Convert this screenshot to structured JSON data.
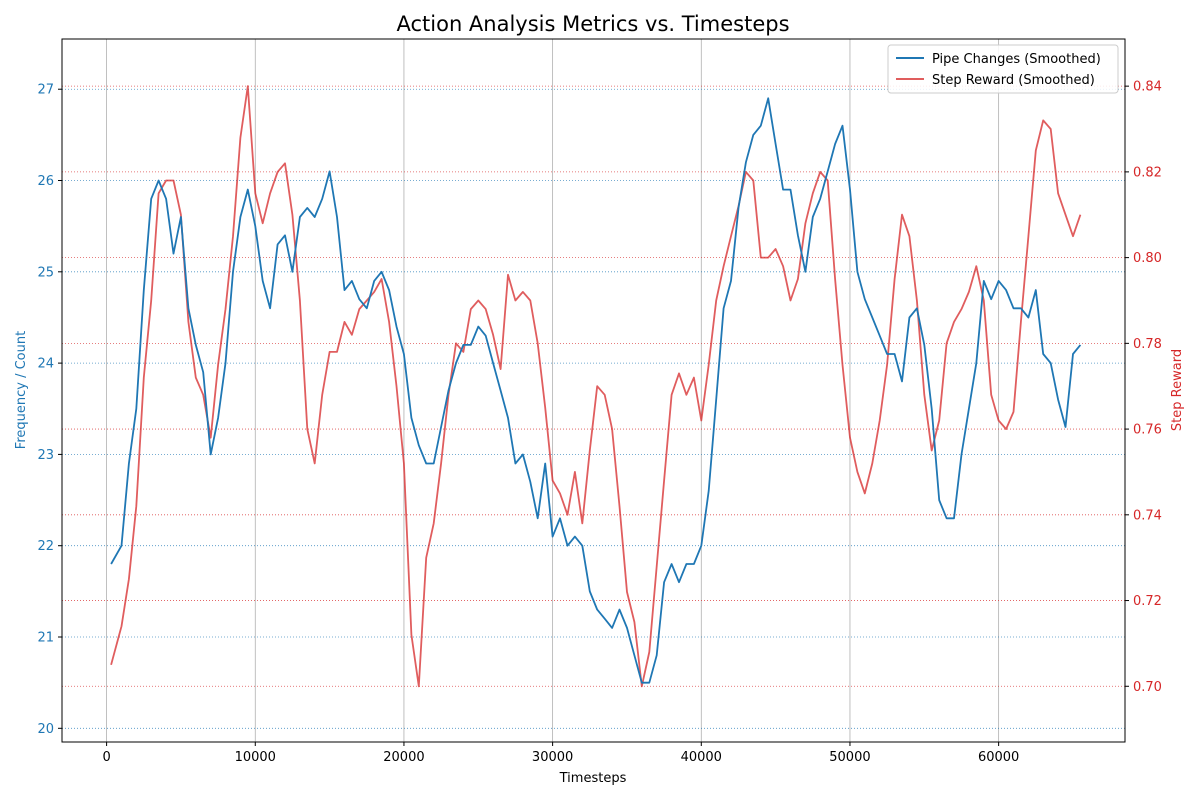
{
  "chart_data": {
    "type": "line",
    "title": "Action Analysis Metrics vs. Timesteps",
    "xlabel": "Timesteps",
    "ylabel_left": "Frequency / Count",
    "ylabel_right": "Step Reward",
    "xlim": [
      -3000,
      68500
    ],
    "ylim_left": [
      19.85,
      27.55
    ],
    "ylim_right": [
      0.687,
      0.851
    ],
    "x_ticks": [
      0,
      10000,
      20000,
      30000,
      40000,
      50000,
      60000
    ],
    "y_ticks_left": [
      20,
      21,
      22,
      23,
      24,
      25,
      26,
      27
    ],
    "y_ticks_right": [
      0.7,
      0.72,
      0.74,
      0.76,
      0.78,
      0.8,
      0.82,
      0.84
    ],
    "x_grid": true,
    "y_grid": "dotted, both axes",
    "legend_position": "top-right",
    "colors": {
      "left_axis": "#1f77b4",
      "right_axis": "#d62728"
    },
    "series": [
      {
        "name": "Pipe Changes (Smoothed)",
        "axis": "left",
        "color": "#1f77b4",
        "x": [
          300,
          1000,
          1500,
          2000,
          2500,
          3000,
          3500,
          4000,
          4500,
          5000,
          5500,
          6000,
          6500,
          7000,
          7500,
          8000,
          8500,
          9000,
          9500,
          10000,
          10500,
          11000,
          11500,
          12000,
          12500,
          13000,
          13500,
          14000,
          14500,
          15000,
          15500,
          16000,
          16500,
          17000,
          17500,
          18000,
          18500,
          19000,
          19500,
          20000,
          20500,
          21000,
          21500,
          22000,
          22500,
          23000,
          23500,
          24000,
          24500,
          25000,
          25500,
          26000,
          26500,
          27000,
          27500,
          28000,
          28500,
          29000,
          29500,
          30000,
          30500,
          31000,
          31500,
          32000,
          32500,
          33000,
          33500,
          34000,
          34500,
          35000,
          35500,
          36000,
          36500,
          37000,
          37500,
          38000,
          38500,
          39000,
          39500,
          40000,
          40500,
          41000,
          41500,
          42000,
          42500,
          43000,
          43500,
          44000,
          44500,
          45000,
          45500,
          46000,
          46500,
          47000,
          47500,
          48000,
          48500,
          49000,
          49500,
          50000,
          50500,
          51000,
          51500,
          52000,
          52500,
          53000,
          53500,
          54000,
          54500,
          55000,
          55500,
          56000,
          56500,
          57000,
          57500,
          58000,
          58500,
          59000,
          59500,
          60000,
          60500,
          61000,
          61500,
          62000,
          62500,
          63000,
          63500,
          64000,
          64500,
          65000,
          65500
        ],
        "y": [
          21.8,
          22.0,
          22.9,
          23.5,
          24.8,
          25.8,
          26.0,
          25.8,
          25.2,
          25.6,
          24.6,
          24.2,
          23.9,
          23.0,
          23.4,
          24.0,
          25.0,
          25.6,
          25.9,
          25.5,
          24.9,
          24.6,
          25.3,
          25.4,
          25.0,
          25.6,
          25.7,
          25.6,
          25.8,
          26.1,
          25.6,
          24.8,
          24.9,
          24.7,
          24.6,
          24.9,
          25.0,
          24.8,
          24.4,
          24.1,
          23.4,
          23.1,
          22.9,
          22.9,
          23.3,
          23.7,
          24.0,
          24.2,
          24.2,
          24.4,
          24.3,
          24.0,
          23.7,
          23.4,
          22.9,
          23.0,
          22.7,
          22.3,
          22.9,
          22.1,
          22.3,
          22.0,
          22.1,
          22.0,
          21.5,
          21.3,
          21.2,
          21.1,
          21.3,
          21.1,
          20.8,
          20.5,
          20.5,
          20.8,
          21.6,
          21.8,
          21.6,
          21.8,
          21.8,
          22.0,
          22.6,
          23.6,
          24.6,
          24.9,
          25.7,
          26.2,
          26.5,
          26.6,
          26.9,
          26.4,
          25.9,
          25.9,
          25.4,
          25.0,
          25.6,
          25.8,
          26.1,
          26.4,
          26.6,
          25.9,
          25.0,
          24.7,
          24.5,
          24.3,
          24.1,
          24.1,
          23.8,
          24.5,
          24.6,
          24.2,
          23.5,
          22.5,
          22.3,
          22.3,
          23.0,
          23.5,
          24.0,
          24.9,
          24.7,
          24.9,
          24.8,
          24.6,
          24.6,
          24.5,
          24.8,
          24.1,
          24.0,
          23.6,
          23.3,
          24.1,
          24.2
        ]
      },
      {
        "name": "Step Reward (Smoothed)",
        "axis": "right",
        "color": "#d62728",
        "x": [
          300,
          1000,
          1500,
          2000,
          2500,
          3000,
          3500,
          4000,
          4500,
          5000,
          5500,
          6000,
          6500,
          7000,
          7500,
          8000,
          8500,
          9000,
          9500,
          10000,
          10500,
          11000,
          11500,
          12000,
          12500,
          13000,
          13500,
          14000,
          14500,
          15000,
          15500,
          16000,
          16500,
          17000,
          17500,
          18000,
          18500,
          19000,
          19500,
          20000,
          20500,
          21000,
          21500,
          22000,
          22500,
          23000,
          23500,
          24000,
          24500,
          25000,
          25500,
          26000,
          26500,
          27000,
          27500,
          28000,
          28500,
          29000,
          29500,
          30000,
          30500,
          31000,
          31500,
          32000,
          32500,
          33000,
          33500,
          34000,
          34500,
          35000,
          35500,
          36000,
          36500,
          37000,
          37500,
          38000,
          38500,
          39000,
          39500,
          40000,
          40500,
          41000,
          41500,
          42000,
          42500,
          43000,
          43500,
          44000,
          44500,
          45000,
          45500,
          46000,
          46500,
          47000,
          47500,
          48000,
          48500,
          49000,
          49500,
          50000,
          50500,
          51000,
          51500,
          52000,
          52500,
          53000,
          53500,
          54000,
          54500,
          55000,
          55500,
          56000,
          56500,
          57000,
          57500,
          58000,
          58500,
          59000,
          59500,
          60000,
          60500,
          61000,
          61500,
          62000,
          62500,
          63000,
          63500,
          64000,
          64500,
          65000,
          65500
        ],
        "y": [
          0.705,
          0.714,
          0.725,
          0.742,
          0.772,
          0.79,
          0.815,
          0.818,
          0.818,
          0.81,
          0.785,
          0.772,
          0.768,
          0.758,
          0.775,
          0.788,
          0.805,
          0.828,
          0.84,
          0.815,
          0.808,
          0.815,
          0.82,
          0.822,
          0.81,
          0.79,
          0.76,
          0.752,
          0.768,
          0.778,
          0.778,
          0.785,
          0.782,
          0.788,
          0.79,
          0.792,
          0.795,
          0.785,
          0.77,
          0.752,
          0.712,
          0.7,
          0.73,
          0.738,
          0.752,
          0.768,
          0.78,
          0.778,
          0.788,
          0.79,
          0.788,
          0.782,
          0.774,
          0.796,
          0.79,
          0.792,
          0.79,
          0.78,
          0.765,
          0.748,
          0.745,
          0.74,
          0.75,
          0.738,
          0.755,
          0.77,
          0.768,
          0.76,
          0.742,
          0.722,
          0.715,
          0.7,
          0.708,
          0.728,
          0.748,
          0.768,
          0.773,
          0.768,
          0.772,
          0.762,
          0.775,
          0.79,
          0.798,
          0.805,
          0.812,
          0.82,
          0.818,
          0.8,
          0.8,
          0.802,
          0.798,
          0.79,
          0.795,
          0.808,
          0.815,
          0.82,
          0.818,
          0.795,
          0.775,
          0.758,
          0.75,
          0.745,
          0.752,
          0.762,
          0.775,
          0.795,
          0.81,
          0.805,
          0.79,
          0.768,
          0.755,
          0.762,
          0.78,
          0.785,
          0.788,
          0.792,
          0.798,
          0.79,
          0.768,
          0.762,
          0.76,
          0.764,
          0.785,
          0.805,
          0.825,
          0.832,
          0.83,
          0.815,
          0.81,
          0.805,
          0.81
        ]
      }
    ]
  }
}
